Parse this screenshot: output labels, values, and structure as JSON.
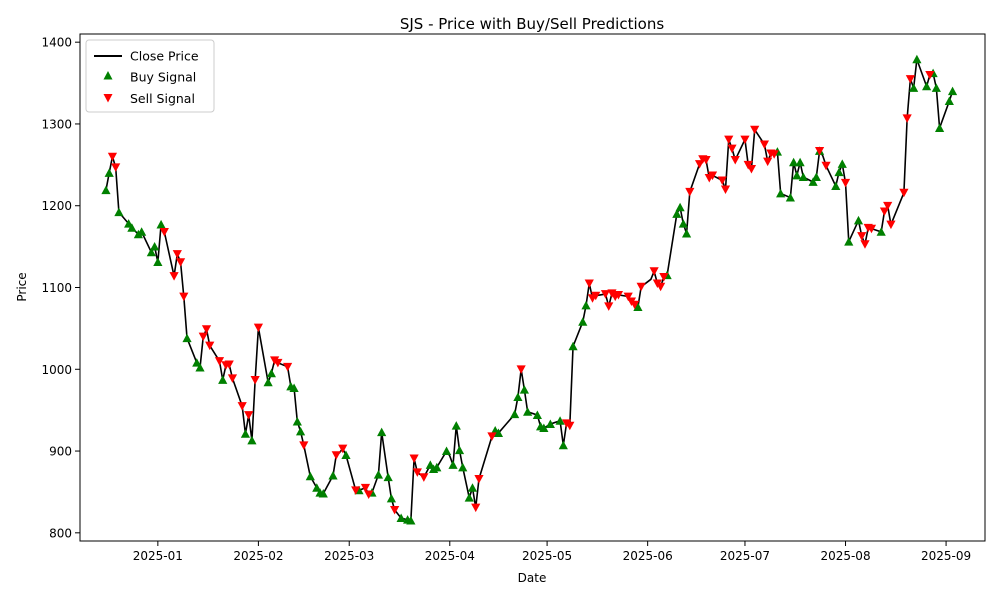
{
  "chart_data": {
    "type": "line",
    "title": "SJS - Price with Buy/Sell Predictions",
    "xlabel": "Date",
    "ylabel": "Price",
    "x_ticks": [
      "2025-01",
      "2025-02",
      "2025-03",
      "2025-04",
      "2025-05",
      "2025-06",
      "2025-07",
      "2025-08",
      "2025-09"
    ],
    "y_ticks": [
      800,
      900,
      1000,
      1100,
      1200,
      1300,
      1400
    ],
    "xlim": [
      "2024-12-08",
      "2025-09-13"
    ],
    "ylim": [
      790,
      1410
    ],
    "legend_position": "top-left",
    "series": [
      {
        "name": "Close Price",
        "color": "#000000",
        "marker": "line",
        "points": [
          [
            "2024-12-16",
            1219
          ],
          [
            "2024-12-17",
            1240
          ],
          [
            "2024-12-18",
            1260
          ],
          [
            "2024-12-19",
            1247
          ],
          [
            "2024-12-20",
            1192
          ],
          [
            "2024-12-23",
            1178
          ],
          [
            "2024-12-24",
            1173
          ],
          [
            "2024-12-26",
            1165
          ],
          [
            "2024-12-27",
            1168
          ],
          [
            "2024-12-30",
            1143
          ],
          [
            "2024-12-31",
            1150
          ],
          [
            "2025-01-01",
            1131
          ],
          [
            "2025-01-02",
            1177
          ],
          [
            "2025-01-03",
            1168
          ],
          [
            "2025-01-06",
            1114
          ],
          [
            "2025-01-07",
            1141
          ],
          [
            "2025-01-08",
            1131
          ],
          [
            "2025-01-09",
            1089
          ],
          [
            "2025-01-10",
            1038
          ],
          [
            "2025-01-13",
            1008
          ],
          [
            "2025-01-14",
            1002
          ],
          [
            "2025-01-15",
            1040
          ],
          [
            "2025-01-16",
            1049
          ],
          [
            "2025-01-17",
            1029
          ],
          [
            "2025-01-20",
            1010
          ],
          [
            "2025-01-21",
            987
          ],
          [
            "2025-01-22",
            1005
          ],
          [
            "2025-01-23",
            1006
          ],
          [
            "2025-01-24",
            989
          ],
          [
            "2025-01-27",
            955
          ],
          [
            "2025-01-28",
            921
          ],
          [
            "2025-01-29",
            944
          ],
          [
            "2025-01-30",
            913
          ],
          [
            "2025-01-31",
            987
          ],
          [
            "2025-02-01",
            1051
          ],
          [
            "2025-02-04",
            984
          ],
          [
            "2025-02-05",
            995
          ],
          [
            "2025-02-06",
            1011
          ],
          [
            "2025-02-07",
            1008
          ],
          [
            "2025-02-10",
            1003
          ],
          [
            "2025-02-11",
            979
          ],
          [
            "2025-02-12",
            977
          ],
          [
            "2025-02-13",
            936
          ],
          [
            "2025-02-14",
            924
          ],
          [
            "2025-02-15",
            907
          ],
          [
            "2025-02-17",
            869
          ],
          [
            "2025-02-19",
            855
          ],
          [
            "2025-02-20",
            849
          ],
          [
            "2025-02-21",
            848
          ],
          [
            "2025-02-24",
            870
          ],
          [
            "2025-02-25",
            895
          ],
          [
            "2025-02-26",
            898
          ],
          [
            "2025-02-27",
            903
          ],
          [
            "2025-02-28",
            895
          ],
          [
            "2025-03-03",
            852
          ],
          [
            "2025-03-04",
            852
          ],
          [
            "2025-03-06",
            855
          ],
          [
            "2025-03-07",
            847
          ],
          [
            "2025-03-08",
            849
          ],
          [
            "2025-03-10",
            871
          ],
          [
            "2025-03-11",
            923
          ],
          [
            "2025-03-13",
            868
          ],
          [
            "2025-03-14",
            842
          ],
          [
            "2025-03-15",
            828
          ],
          [
            "2025-03-17",
            818
          ],
          [
            "2025-03-19",
            816
          ],
          [
            "2025-03-20",
            815
          ],
          [
            "2025-03-21",
            891
          ],
          [
            "2025-03-22",
            874
          ],
          [
            "2025-03-24",
            868
          ],
          [
            "2025-03-26",
            883
          ],
          [
            "2025-03-27",
            878
          ],
          [
            "2025-03-28",
            880
          ],
          [
            "2025-03-31",
            900
          ],
          [
            "2025-04-01",
            894
          ],
          [
            "2025-04-02",
            883
          ],
          [
            "2025-04-03",
            931
          ],
          [
            "2025-04-04",
            901
          ],
          [
            "2025-04-05",
            880
          ],
          [
            "2025-04-07",
            843
          ],
          [
            "2025-04-08",
            855
          ],
          [
            "2025-04-09",
            831
          ],
          [
            "2025-04-10",
            866
          ],
          [
            "2025-04-14",
            918
          ],
          [
            "2025-04-15",
            925
          ],
          [
            "2025-04-16",
            922
          ],
          [
            "2025-04-21",
            945
          ],
          [
            "2025-04-22",
            966
          ],
          [
            "2025-04-23",
            1000
          ],
          [
            "2025-04-24",
            975
          ],
          [
            "2025-04-25",
            948
          ],
          [
            "2025-04-28",
            944
          ],
          [
            "2025-04-29",
            930
          ],
          [
            "2025-04-30",
            928
          ],
          [
            "2025-05-02",
            933
          ],
          [
            "2025-05-05",
            937
          ],
          [
            "2025-05-06",
            907
          ],
          [
            "2025-05-07",
            934
          ],
          [
            "2025-05-08",
            931
          ],
          [
            "2025-05-09",
            1028
          ],
          [
            "2025-05-12",
            1058
          ],
          [
            "2025-05-13",
            1078
          ],
          [
            "2025-05-14",
            1105
          ],
          [
            "2025-05-15",
            1087
          ],
          [
            "2025-05-16",
            1090
          ],
          [
            "2025-05-19",
            1092
          ],
          [
            "2025-05-20",
            1077
          ],
          [
            "2025-05-21",
            1093
          ],
          [
            "2025-05-22",
            1089
          ],
          [
            "2025-05-23",
            1091
          ],
          [
            "2025-05-26",
            1089
          ],
          [
            "2025-05-27",
            1083
          ],
          [
            "2025-05-28",
            1079
          ],
          [
            "2025-05-29",
            1076
          ],
          [
            "2025-05-30",
            1101
          ],
          [
            "2025-06-02",
            1110
          ],
          [
            "2025-06-03",
            1120
          ],
          [
            "2025-06-04",
            1105
          ],
          [
            "2025-06-05",
            1101
          ],
          [
            "2025-06-06",
            1113
          ],
          [
            "2025-06-07",
            1115
          ],
          [
            "2025-06-10",
            1190
          ],
          [
            "2025-06-11",
            1198
          ],
          [
            "2025-06-12",
            1178
          ],
          [
            "2025-06-13",
            1166
          ],
          [
            "2025-06-14",
            1217
          ],
          [
            "2025-06-17",
            1251
          ],
          [
            "2025-06-18",
            1257
          ],
          [
            "2025-06-19",
            1256
          ],
          [
            "2025-06-20",
            1234
          ],
          [
            "2025-06-21",
            1237
          ],
          [
            "2025-06-24",
            1231
          ],
          [
            "2025-06-25",
            1220
          ],
          [
            "2025-06-26",
            1281
          ],
          [
            "2025-06-27",
            1270
          ],
          [
            "2025-06-28",
            1256
          ],
          [
            "2025-07-01",
            1281
          ],
          [
            "2025-07-02",
            1250
          ],
          [
            "2025-07-03",
            1245
          ],
          [
            "2025-07-04",
            1293
          ],
          [
            "2025-07-07",
            1275
          ],
          [
            "2025-07-08",
            1254
          ],
          [
            "2025-07-09",
            1264
          ],
          [
            "2025-07-10",
            1263
          ],
          [
            "2025-07-11",
            1266
          ],
          [
            "2025-07-12",
            1215
          ],
          [
            "2025-07-15",
            1210
          ],
          [
            "2025-07-16",
            1253
          ],
          [
            "2025-07-17",
            1237
          ],
          [
            "2025-07-18",
            1253
          ],
          [
            "2025-07-19",
            1235
          ],
          [
            "2025-07-22",
            1229
          ],
          [
            "2025-07-23",
            1235
          ],
          [
            "2025-07-24",
            1267
          ],
          [
            "2025-07-25",
            1261
          ],
          [
            "2025-07-26",
            1249
          ],
          [
            "2025-07-29",
            1224
          ],
          [
            "2025-07-30",
            1241
          ],
          [
            "2025-07-31",
            1251
          ],
          [
            "2025-08-01",
            1228
          ],
          [
            "2025-08-02",
            1156
          ],
          [
            "2025-08-05",
            1182
          ],
          [
            "2025-08-06",
            1163
          ],
          [
            "2025-08-07",
            1153
          ],
          [
            "2025-08-08",
            1173
          ],
          [
            "2025-08-09",
            1172
          ],
          [
            "2025-08-12",
            1168
          ],
          [
            "2025-08-13",
            1193
          ],
          [
            "2025-08-14",
            1200
          ],
          [
            "2025-08-15",
            1177
          ],
          [
            "2025-08-19",
            1216
          ],
          [
            "2025-08-20",
            1307
          ],
          [
            "2025-08-21",
            1355
          ],
          [
            "2025-08-22",
            1344
          ],
          [
            "2025-08-23",
            1379
          ],
          [
            "2025-08-26",
            1346
          ],
          [
            "2025-08-27",
            1360
          ],
          [
            "2025-08-28",
            1362
          ],
          [
            "2025-08-29",
            1344
          ],
          [
            "2025-08-30",
            1295
          ],
          [
            "2025-09-02",
            1328
          ],
          [
            "2025-09-03",
            1340
          ]
        ]
      },
      {
        "name": "Buy Signal",
        "color": "#008000",
        "marker": "triangle-up",
        "dates": [
          "2024-12-16",
          "2024-12-17",
          "2024-12-20",
          "2024-12-23",
          "2024-12-24",
          "2024-12-26",
          "2024-12-27",
          "2024-12-30",
          "2024-12-31",
          "2025-01-01",
          "2025-01-02",
          "2025-01-10",
          "2025-01-13",
          "2025-01-14",
          "2025-01-21",
          "2025-01-28",
          "2025-01-30",
          "2025-02-04",
          "2025-02-05",
          "2025-02-11",
          "2025-02-12",
          "2025-02-13",
          "2025-02-14",
          "2025-02-17",
          "2025-02-19",
          "2025-02-20",
          "2025-02-21",
          "2025-02-24",
          "2025-02-28",
          "2025-03-04",
          "2025-03-08",
          "2025-03-10",
          "2025-03-11",
          "2025-03-13",
          "2025-03-14",
          "2025-03-17",
          "2025-03-19",
          "2025-03-20",
          "2025-03-26",
          "2025-03-27",
          "2025-03-28",
          "2025-03-31",
          "2025-04-02",
          "2025-04-03",
          "2025-04-04",
          "2025-04-05",
          "2025-04-07",
          "2025-04-08",
          "2025-04-15",
          "2025-04-16",
          "2025-04-21",
          "2025-04-22",
          "2025-04-24",
          "2025-04-25",
          "2025-04-28",
          "2025-04-29",
          "2025-04-30",
          "2025-05-02",
          "2025-05-05",
          "2025-05-06",
          "2025-05-09",
          "2025-05-12",
          "2025-05-13",
          "2025-05-29",
          "2025-06-07",
          "2025-06-10",
          "2025-06-11",
          "2025-06-12",
          "2025-06-13",
          "2025-07-11",
          "2025-07-12",
          "2025-07-15",
          "2025-07-16",
          "2025-07-17",
          "2025-07-18",
          "2025-07-19",
          "2025-07-22",
          "2025-07-23",
          "2025-07-24",
          "2025-07-29",
          "2025-07-30",
          "2025-07-31",
          "2025-08-02",
          "2025-08-05",
          "2025-08-12",
          "2025-08-22",
          "2025-08-23",
          "2025-08-26",
          "2025-08-28",
          "2025-08-29",
          "2025-08-30",
          "2025-09-02",
          "2025-09-03"
        ]
      },
      {
        "name": "Sell Signal",
        "color": "#ff0000",
        "marker": "triangle-down",
        "dates": [
          "2024-12-18",
          "2024-12-19",
          "2025-01-03",
          "2025-01-06",
          "2025-01-07",
          "2025-01-08",
          "2025-01-09",
          "2025-01-15",
          "2025-01-16",
          "2025-01-17",
          "2025-01-20",
          "2025-01-22",
          "2025-01-23",
          "2025-01-24",
          "2025-01-27",
          "2025-01-29",
          "2025-01-31",
          "2025-02-01",
          "2025-02-06",
          "2025-02-07",
          "2025-02-10",
          "2025-02-15",
          "2025-02-25",
          "2025-02-27",
          "2025-03-03",
          "2025-03-06",
          "2025-03-07",
          "2025-03-15",
          "2025-03-21",
          "2025-03-22",
          "2025-03-24",
          "2025-04-09",
          "2025-04-10",
          "2025-04-14",
          "2025-04-23",
          "2025-05-07",
          "2025-05-08",
          "2025-05-14",
          "2025-05-15",
          "2025-05-16",
          "2025-05-19",
          "2025-05-20",
          "2025-05-21",
          "2025-05-22",
          "2025-05-23",
          "2025-05-26",
          "2025-05-27",
          "2025-05-28",
          "2025-05-30",
          "2025-06-03",
          "2025-06-04",
          "2025-06-05",
          "2025-06-06",
          "2025-06-14",
          "2025-06-17",
          "2025-06-18",
          "2025-06-19",
          "2025-06-20",
          "2025-06-21",
          "2025-06-24",
          "2025-06-25",
          "2025-06-26",
          "2025-06-27",
          "2025-06-28",
          "2025-07-01",
          "2025-07-02",
          "2025-07-03",
          "2025-07-04",
          "2025-07-07",
          "2025-07-08",
          "2025-07-09",
          "2025-07-10",
          "2025-07-24",
          "2025-07-26",
          "2025-08-01",
          "2025-08-06",
          "2025-08-07",
          "2025-08-08",
          "2025-08-09",
          "2025-08-13",
          "2025-08-14",
          "2025-08-15",
          "2025-08-19",
          "2025-08-20",
          "2025-08-21",
          "2025-08-27"
        ]
      }
    ]
  }
}
